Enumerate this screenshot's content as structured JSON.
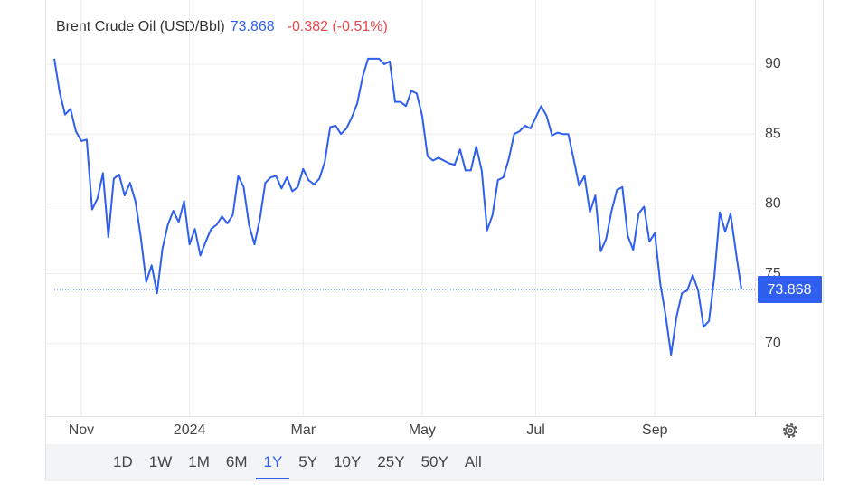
{
  "chart_data": {
    "type": "line",
    "title": "Brent Crude Oil (USD/Bbl)",
    "price": 73.868,
    "change": "-0.382 (-0.51%)",
    "change_color": "#e5484d",
    "color": "#2f5fef",
    "categories": [
      null,
      null,
      null,
      null,
      null,
      "Nov",
      null,
      null,
      null,
      null,
      null,
      null,
      null,
      null,
      null,
      null,
      null,
      null,
      null,
      null,
      null,
      null,
      null,
      null,
      null,
      "2024",
      null,
      null,
      null,
      null,
      null,
      null,
      null,
      null,
      null,
      null,
      null,
      null,
      null,
      null,
      null,
      null,
      null,
      null,
      null,
      null,
      "Mar",
      null,
      null,
      null,
      null,
      null,
      null,
      null,
      null,
      null,
      null,
      null,
      null,
      null,
      null,
      null,
      null,
      null,
      null,
      null,
      null,
      null,
      "May",
      null,
      null,
      null,
      null,
      null,
      null,
      null,
      null,
      null,
      null,
      null,
      null,
      null,
      null,
      null,
      null,
      null,
      null,
      null,
      null,
      "Jul",
      null,
      null,
      null,
      null,
      null,
      null,
      null,
      null,
      null,
      null,
      null,
      null,
      null,
      null,
      null,
      null,
      null,
      null,
      null,
      null,
      null,
      "Sep",
      null,
      null,
      null,
      null,
      null,
      null,
      null,
      null,
      null,
      null,
      null,
      null,
      null,
      null,
      null,
      null
    ],
    "values": [
      90.4,
      88,
      86.4,
      86.8,
      85.2,
      84.5,
      84.6,
      79.6,
      80.4,
      82.2,
      77.6,
      81.8,
      82.1,
      80.6,
      81.5,
      80.2,
      77.6,
      74.4,
      75.6,
      73.6,
      76.8,
      78.5,
      79.5,
      78.7,
      80.2,
      77.1,
      78.2,
      76.3,
      77.3,
      78.2,
      78.5,
      79.1,
      78.6,
      79.2,
      82,
      81.2,
      78.5,
      77.1,
      78.9,
      81.5,
      81.9,
      82,
      81.1,
      81.9,
      80.9,
      81.2,
      82.5,
      81.7,
      81.4,
      81.8,
      83,
      85.5,
      85.6,
      85,
      85.4,
      86.2,
      87.2,
      89.1,
      90.4,
      90.4,
      90.4,
      90,
      90.2,
      87.3,
      87.3,
      87,
      88.1,
      87.9,
      86.3,
      83.4,
      83.1,
      83.3,
      83.1,
      82.9,
      82.8,
      83.9,
      82.4,
      82.4,
      84.1,
      82.4,
      78.1,
      79.2,
      81.7,
      81.9,
      83.2,
      85,
      85.2,
      85.6,
      85.4,
      86.2,
      87,
      86.3,
      84.9,
      85.1,
      85,
      85,
      83.2,
      81.3,
      82,
      79.4,
      80.6,
      76.6,
      77.5,
      79.5,
      81,
      81.2,
      77.7,
      76.7,
      79.3,
      79.8,
      77.3,
      77.9,
      74.3,
      72,
      69.2,
      71.9,
      73.6,
      73.8,
      74.9,
      73.8,
      71.2,
      71.6,
      74.8,
      79.4,
      78,
      79.3,
      76.5,
      73.868
    ],
    "ylim": [
      64.8,
      94.6
    ],
    "yticks": [
      70,
      75,
      80,
      85,
      90
    ],
    "grid": true,
    "ranges": [
      "1D",
      "1W",
      "1M",
      "6M",
      "1Y",
      "5Y",
      "10Y",
      "25Y",
      "50Y",
      "All"
    ],
    "active_range": "1Y"
  }
}
